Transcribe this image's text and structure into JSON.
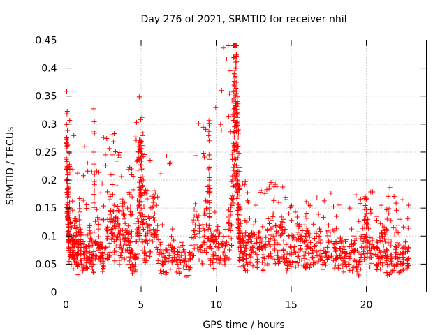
{
  "chart_data": {
    "type": "scatter",
    "title": "Day 276 of 2021, SRMTID for receiver nhil",
    "xlabel": "GPS time / hours",
    "ylabel": "SRMTID / TECUs",
    "xlim": [
      0,
      24
    ],
    "ylim": [
      0,
      0.45
    ],
    "xticks": [
      0,
      5,
      10,
      15,
      20
    ],
    "xtick_labels": [
      "0",
      "5",
      "10",
      "15",
      "20"
    ],
    "yticks": [
      0,
      0.05,
      0.1,
      0.15,
      0.2,
      0.25,
      0.3,
      0.35,
      0.4,
      0.45
    ],
    "ytick_labels": [
      "0",
      "0.05",
      "0.1",
      "0.15",
      "0.2",
      "0.25",
      "0.3",
      "0.35",
      "0.4",
      "0.45"
    ],
    "grid": true,
    "marker": "plus",
    "color": "#ff0000",
    "series": [
      {
        "name": "SRMTID",
        "x": [
          0.05,
          0.1,
          0.15,
          0.2,
          0.3,
          0.4,
          0.5,
          0.6,
          0.7,
          0.8,
          0.9,
          1.0,
          1.2,
          1.4,
          1.6,
          1.8,
          2.0,
          2.2,
          2.4,
          2.6,
          2.8,
          3.0,
          3.2,
          3.4,
          3.6,
          3.8,
          4.0,
          4.2,
          4.4,
          4.6,
          4.8,
          4.9,
          5.0,
          5.1,
          5.3,
          5.6,
          5.9,
          6.2,
          6.5,
          6.8,
          7.1,
          7.4,
          7.7,
          8.0,
          8.3,
          8.6,
          8.9,
          9.2,
          9.4,
          9.6,
          9.8,
          10.0,
          10.2,
          10.5,
          10.8,
          11.0,
          11.1,
          11.2,
          11.3,
          11.4,
          11.5,
          11.6,
          11.8,
          12.0,
          12.3,
          12.6,
          12.9,
          13.2,
          13.5,
          13.8,
          14.1,
          14.4,
          14.7,
          15.0,
          15.3,
          15.6,
          15.9,
          16.2,
          16.5,
          16.8,
          17.1,
          17.4,
          17.7,
          18.0,
          18.3,
          18.6,
          18.9,
          19.2,
          19.5,
          19.8,
          20.0,
          20.2,
          20.5,
          20.8,
          21.1,
          21.4,
          21.7,
          22.0,
          22.3,
          22.6,
          22.8,
          0.02,
          0.08,
          0.12,
          0.18,
          0.25,
          1.85,
          1.9,
          2.95,
          3.4,
          4.1,
          4.4,
          4.85,
          4.95,
          5.05,
          5.15,
          6.1,
          9.5,
          9.55,
          9.6,
          11.15,
          11.2,
          11.25,
          11.3,
          11.35,
          11.4,
          11.45,
          11.5,
          11.6,
          12.5,
          13.8,
          14.5,
          15.9,
          16.1,
          18.9,
          19.9,
          20.1,
          21.1,
          21.5,
          22.8
        ],
        "y": [
          0.2,
          0.17,
          0.12,
          0.1,
          0.09,
          0.08,
          0.07,
          0.1,
          0.09,
          0.05,
          0.12,
          0.08,
          0.06,
          0.07,
          0.09,
          0.05,
          0.12,
          0.08,
          0.06,
          0.07,
          0.1,
          0.13,
          0.09,
          0.12,
          0.08,
          0.14,
          0.07,
          0.09,
          0.05,
          0.06,
          0.1,
          0.16,
          0.2,
          0.12,
          0.09,
          0.11,
          0.14,
          0.07,
          0.05,
          0.06,
          0.08,
          0.05,
          0.07,
          0.04,
          0.06,
          0.12,
          0.08,
          0.1,
          0.14,
          0.09,
          0.07,
          0.09,
          0.08,
          0.07,
          0.1,
          0.12,
          0.2,
          0.26,
          0.33,
          0.2,
          0.1,
          0.08,
          0.07,
          0.06,
          0.09,
          0.07,
          0.08,
          0.06,
          0.09,
          0.1,
          0.07,
          0.11,
          0.06,
          0.08,
          0.07,
          0.09,
          0.06,
          0.08,
          0.07,
          0.1,
          0.05,
          0.08,
          0.09,
          0.06,
          0.07,
          0.05,
          0.06,
          0.07,
          0.05,
          0.09,
          0.12,
          0.07,
          0.08,
          0.06,
          0.09,
          0.05,
          0.06,
          0.08,
          0.05,
          0.07,
          0.08,
          0.24,
          0.26,
          0.16,
          0.13,
          0.22,
          0.25,
          0.21,
          0.21,
          0.19,
          0.15,
          0.17,
          0.25,
          0.24,
          0.22,
          0.2,
          0.17,
          0.22,
          0.2,
          0.18,
          0.42,
          0.39,
          0.36,
          0.34,
          0.3,
          0.26,
          0.24,
          0.19,
          0.15,
          0.12,
          0.14,
          0.13,
          0.12,
          0.11,
          0.15,
          0.12,
          0.13,
          0.11,
          0.14,
          0.155
        ]
      }
    ]
  }
}
